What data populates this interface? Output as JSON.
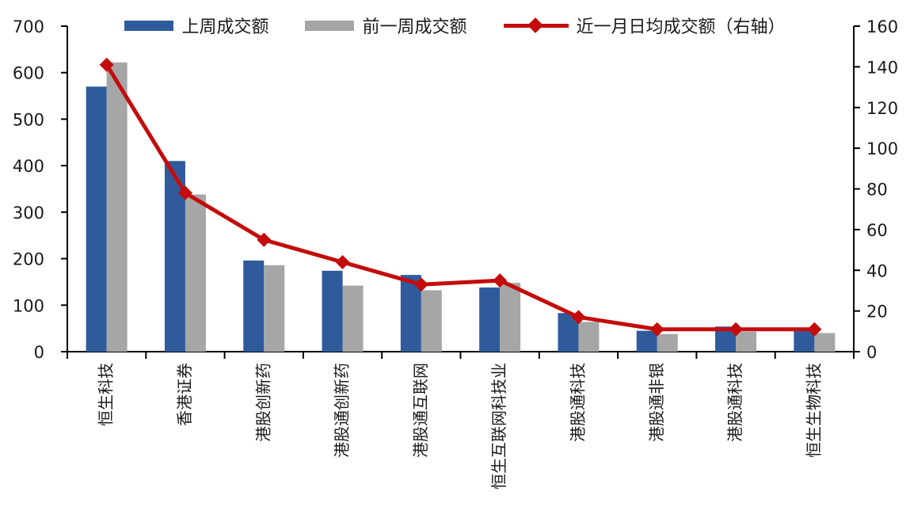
{
  "chart_data": {
    "type": "bar",
    "subtype": "grouped-bars-with-line-dual-axis",
    "title": "",
    "grid": false,
    "legend_position": "top",
    "categories": [
      "恒生科技",
      "香港证券",
      "港股创新药",
      "港股通创新药",
      "港股通互联网",
      "恒生互联网科技业",
      "港股通科技",
      "港股通非银",
      "港股通科技",
      "恒生生物科技"
    ],
    "series": [
      {
        "name": "上周成交额",
        "type": "bar",
        "axis": "left",
        "color": "#2F5B9D",
        "values": [
          570,
          410,
          196,
          174,
          165,
          138,
          83,
          45,
          54,
          47
        ]
      },
      {
        "name": "前一周成交额",
        "type": "bar",
        "axis": "left",
        "color": "#A6A6A6",
        "values": [
          622,
          338,
          186,
          142,
          132,
          148,
          64,
          38,
          43,
          40
        ]
      },
      {
        "name": "近一月日均成交额（右轴）",
        "type": "line",
        "axis": "right",
        "color": "#C40C0C",
        "values": [
          141,
          78,
          55,
          44,
          33,
          35,
          17,
          11,
          11,
          11
        ]
      }
    ],
    "left_axis": {
      "min": 0,
      "max": 700,
      "step": 100,
      "tick_labels": [
        "0",
        "100",
        "200",
        "300",
        "400",
        "500",
        "600",
        "700"
      ]
    },
    "right_axis": {
      "min": 0,
      "max": 160,
      "step": 20,
      "tick_labels": [
        "0",
        "20",
        "40",
        "60",
        "80",
        "100",
        "120",
        "140",
        "160"
      ]
    },
    "axis_color": "#000000",
    "tick_label_color": "#1a1a1a"
  }
}
